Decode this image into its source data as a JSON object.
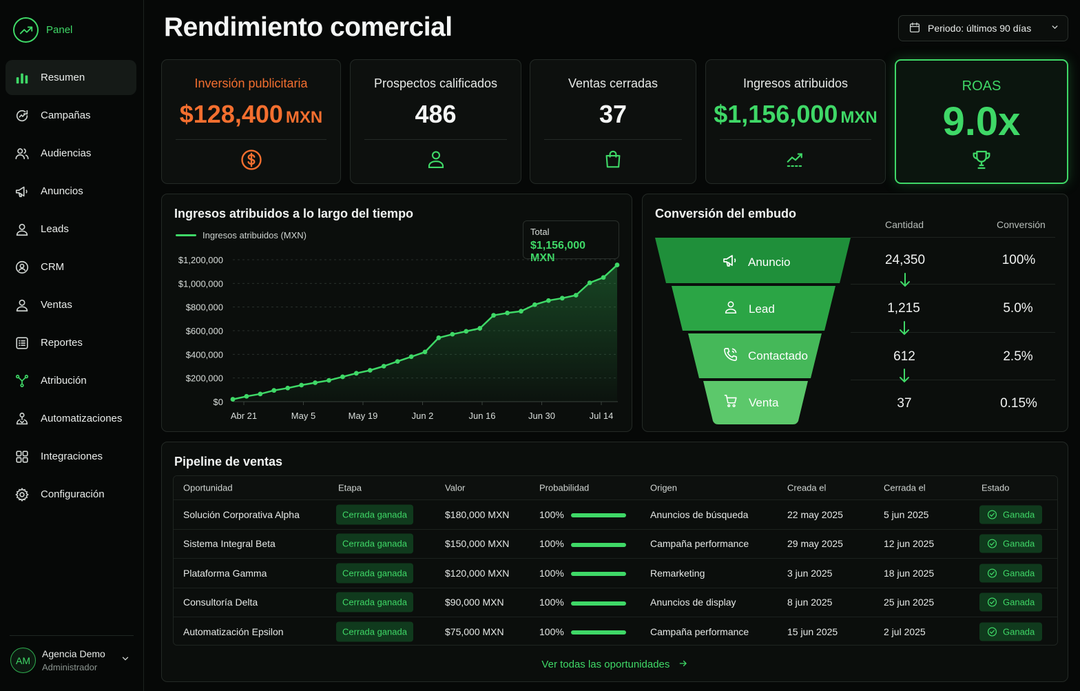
{
  "app": {
    "brand": "Panel",
    "page_title": "Rendimiento comercial"
  },
  "period": {
    "label": "Periodo: últimos 90 días"
  },
  "sidebar": {
    "items": [
      {
        "label": "Resumen",
        "icon": "bar-chart-icon",
        "active": true
      },
      {
        "label": "Campañas",
        "icon": "refresh-chart-icon"
      },
      {
        "label": "Audiencias",
        "icon": "users-icon"
      },
      {
        "label": "Anuncios",
        "icon": "megaphone-icon"
      },
      {
        "label": "Leads",
        "icon": "user-icon"
      },
      {
        "label": "CRM",
        "icon": "crm-icon"
      },
      {
        "label": "Ventas",
        "icon": "user-icon"
      },
      {
        "label": "Reportes",
        "icon": "report-icon"
      },
      {
        "label": "Atribución",
        "icon": "branch-icon"
      },
      {
        "label": "Automatizaciones",
        "icon": "automation-icon"
      },
      {
        "label": "Integraciones",
        "icon": "grid-icon"
      },
      {
        "label": "Configuración",
        "icon": "gear-icon"
      }
    ],
    "user": {
      "initials": "AM",
      "name": "Agencia Demo",
      "role": "Administrador"
    }
  },
  "kpis": [
    {
      "label": "Inversión publicitaria",
      "value": "$128,400",
      "unit": "MXN",
      "icon": "dollar-icon",
      "color": "#f46f2f"
    },
    {
      "label": "Prospectos calificados",
      "value": "486",
      "unit": "",
      "icon": "user-icon"
    },
    {
      "label": "Ventas cerradas",
      "value": "37",
      "unit": "",
      "icon": "bag-icon"
    },
    {
      "label": "Ingresos atribuidos",
      "value": "$1,156,000",
      "unit": "MXN",
      "icon": "trend-up-icon",
      "color": "#3fd867"
    },
    {
      "label": "ROAS",
      "value": "9.0x",
      "unit": "",
      "icon": "trophy-icon",
      "color": "#3fd867"
    }
  ],
  "revenue_panel": {
    "title": "Ingresos atribuidos a lo largo del tiempo",
    "total_label": "Total",
    "total_value": "$1,156,000 MXN"
  },
  "chart_data": {
    "type": "area",
    "title": "Ingresos atribuidos a lo largo del tiempo",
    "series": [
      {
        "name": "Ingresos atribuidos (MXN)",
        "color": "#3fd867",
        "values": [
          20000,
          45000,
          65000,
          95000,
          115000,
          140000,
          160000,
          180000,
          210000,
          240000,
          265000,
          300000,
          340000,
          380000,
          420000,
          540000,
          570000,
          595000,
          620000,
          730000,
          750000,
          765000,
          820000,
          855000,
          875000,
          900000,
          1005000,
          1050000,
          1156000
        ]
      }
    ],
    "x_tick_labels": [
      "Abr 21",
      "May 5",
      "May 19",
      "Jun 2",
      "Jun 16",
      "Jun 30",
      "Jul 14"
    ],
    "y_tick_labels": [
      "$0",
      "$200,000",
      "$400,000",
      "$600,000",
      "$800,000",
      "$1,000,000",
      "$1,200,000"
    ],
    "ylim": [
      0,
      1200000
    ],
    "grid": true,
    "legend": "top-left"
  },
  "funnel": {
    "title": "Conversión del embudo",
    "col_qty": "Cantidad",
    "col_conv": "Conversión",
    "stages": [
      {
        "label": "Anuncio",
        "icon": "megaphone-icon",
        "qty": "24,350",
        "conv": "100%",
        "color": "#1f8f3a"
      },
      {
        "label": "Lead",
        "icon": "user-icon",
        "qty": "1,215",
        "conv": "5.0%",
        "color": "#2ba545"
      },
      {
        "label": "Contactado",
        "icon": "phone-icon",
        "qty": "612",
        "conv": "2.5%",
        "color": "#45b859"
      },
      {
        "label": "Venta",
        "icon": "cart-icon",
        "qty": "37",
        "conv": "0.15%",
        "color": "#5cc86b"
      }
    ]
  },
  "pipeline": {
    "title": "Pipeline de ventas",
    "columns": [
      "Oportunidad",
      "Etapa",
      "Valor",
      "Probabilidad",
      "Origen",
      "Creada el",
      "Cerrada el",
      "Estado"
    ],
    "rows": [
      {
        "name": "Solución Corporativa Alpha",
        "stage": "Cerrada ganada",
        "value": "$180,000 MXN",
        "prob": "100%",
        "prob_level": 1.0,
        "origin": "Anuncios de búsqueda",
        "created": "22 may 2025",
        "closed": "5 jun 2025",
        "state": "Ganada"
      },
      {
        "name": "Sistema Integral Beta",
        "stage": "Cerrada ganada",
        "value": "$150,000 MXN",
        "prob": "100%",
        "prob_level": 1.0,
        "origin": "Campaña performance",
        "created": "29 may 2025",
        "closed": "12 jun 2025",
        "state": "Ganada"
      },
      {
        "name": "Plataforma Gamma",
        "stage": "Cerrada ganada",
        "value": "$120,000 MXN",
        "prob": "100%",
        "prob_level": 1.0,
        "origin": "Remarketing",
        "created": "3 jun 2025",
        "closed": "18 jun 2025",
        "state": "Ganada"
      },
      {
        "name": "Consultoría Delta",
        "stage": "Cerrada ganada",
        "value": "$90,000 MXN",
        "prob": "100%",
        "prob_level": 1.0,
        "origin": "Anuncios de display",
        "created": "8 jun 2025",
        "closed": "25 jun 2025",
        "state": "Ganada"
      },
      {
        "name": "Automatización Epsilon",
        "stage": "Cerrada ganada",
        "value": "$75,000 MXN",
        "prob": "100%",
        "prob_level": 1.0,
        "origin": "Campaña performance",
        "created": "15 jun 2025",
        "closed": "2 jul 2025",
        "state": "Ganada"
      }
    ],
    "see_all": "Ver todas las oportunidades"
  }
}
